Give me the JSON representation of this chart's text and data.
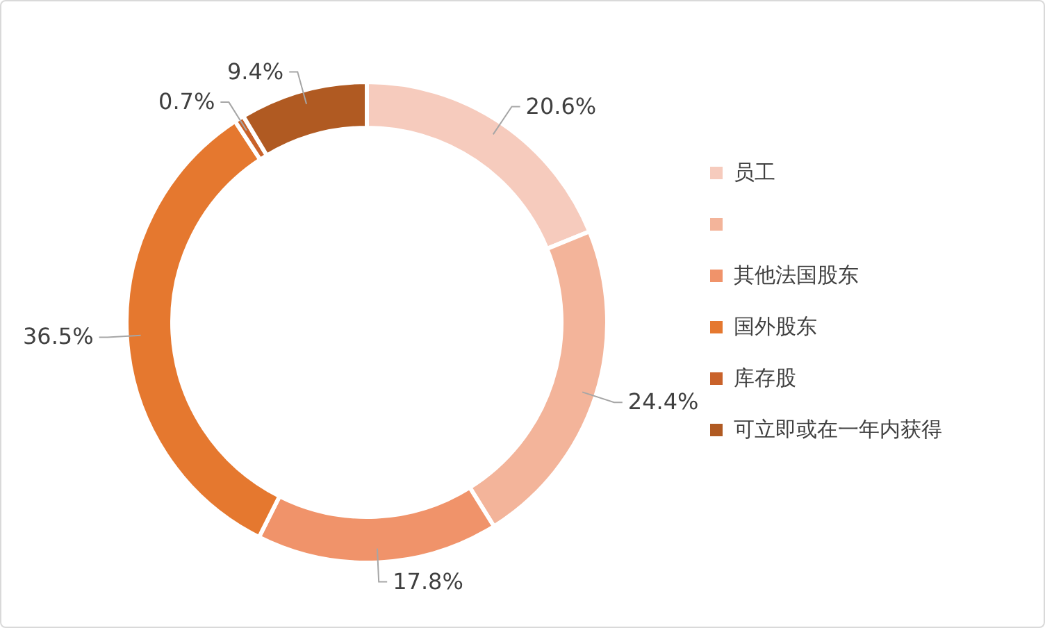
{
  "chart_data": {
    "type": "donut",
    "categories": [
      "员工",
      null,
      "其他法国股东",
      "国外股东",
      "库存股",
      "可立即或在一年内获得"
    ],
    "values": [
      20.6,
      24.4,
      17.8,
      36.5,
      0.7,
      9.4
    ],
    "value_labels": [
      "20.6%",
      "24.4%",
      "17.8%",
      "36.5%",
      "0.7%",
      "9.4%"
    ],
    "colors": [
      "#f6cbbd",
      "#f3b49a",
      "#f0936a",
      "#e5782f",
      "#c9622a",
      "#b05a22"
    ],
    "legend": "right"
  }
}
